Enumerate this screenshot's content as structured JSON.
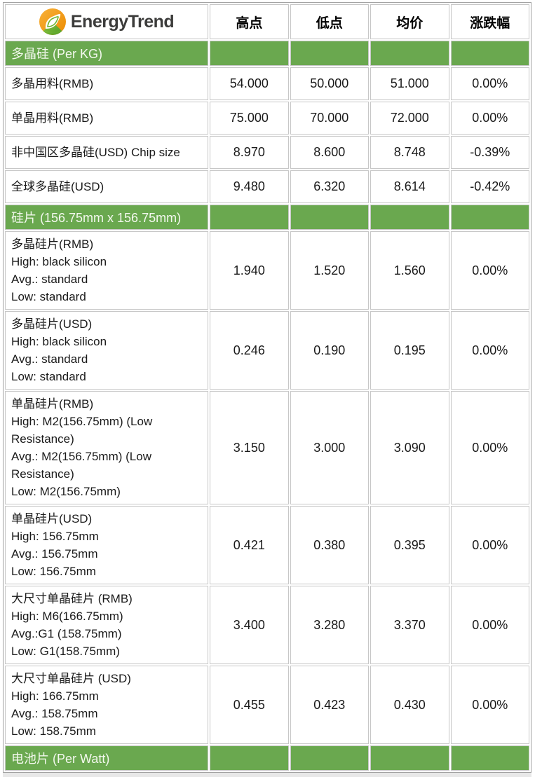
{
  "logo": {
    "text": "EnergyTrend"
  },
  "columns": [
    "高点",
    "低点",
    "均价",
    "涨跌幅"
  ],
  "colors": {
    "section_green": "#6aa84f",
    "logo_orange": "#f39a11",
    "logo_green": "#6cb32b",
    "header_text": "#000000",
    "body_text": "#1a1a1a"
  },
  "sections": [
    {
      "title": "多晶硅 (Per KG)",
      "rows": [
        {
          "label_lines": [
            "多晶用料(RMB)"
          ],
          "high": "54.000",
          "low": "50.000",
          "avg": "51.000",
          "change": "0.00%"
        },
        {
          "label_lines": [
            "单晶用料(RMB)"
          ],
          "high": "75.000",
          "low": "70.000",
          "avg": "72.000",
          "change": "0.00%"
        },
        {
          "label_lines": [
            "非中国区多晶硅(USD) Chip size"
          ],
          "high": "8.970",
          "low": "8.600",
          "avg": "8.748",
          "change": "-0.39%"
        },
        {
          "label_lines": [
            "全球多晶硅(USD)"
          ],
          "high": "9.480",
          "low": "6.320",
          "avg": "8.614",
          "change": "-0.42%"
        }
      ]
    },
    {
      "title": "硅片 (156.75mm x 156.75mm)",
      "rows": [
        {
          "label_lines": [
            "多晶硅片(RMB)",
            "High: black silicon",
            "Avg.: standard",
            "Low: standard"
          ],
          "high": "1.940",
          "low": "1.520",
          "avg": "1.560",
          "change": "0.00%"
        },
        {
          "label_lines": [
            "多晶硅片(USD)",
            "High: black silicon",
            "Avg.: standard",
            "Low: standard"
          ],
          "high": "0.246",
          "low": "0.190",
          "avg": "0.195",
          "change": "0.00%"
        },
        {
          "label_lines": [
            "单晶硅片(RMB)",
            "High: M2(156.75mm) (Low Resistance)",
            "Avg.: M2(156.75mm) (Low Resistance)",
            "Low: M2(156.75mm)"
          ],
          "high": "3.150",
          "low": "3.000",
          "avg": "3.090",
          "change": "0.00%"
        },
        {
          "label_lines": [
            "单晶硅片(USD)",
            "High: 156.75mm",
            "Avg.: 156.75mm",
            "Low: 156.75mm"
          ],
          "high": "0.421",
          "low": "0.380",
          "avg": "0.395",
          "change": "0.00%"
        },
        {
          "label_lines": [
            "大尺寸单晶硅片 (RMB)",
            "High: M6(166.75mm)",
            "Avg.:G1 (158.75mm)",
            "Low: G1(158.75mm)"
          ],
          "high": "3.400",
          "low": "3.280",
          "avg": "3.370",
          "change": "0.00%"
        },
        {
          "label_lines": [
            "大尺寸单晶硅片 (USD)",
            "High: 166.75mm",
            "Avg.: 158.75mm",
            "Low: 158.75mm"
          ],
          "high": "0.455",
          "low": "0.423",
          "avg": "0.430",
          "change": "0.00%"
        }
      ]
    },
    {
      "title": "电池片 (Per Watt)",
      "rows": []
    }
  ]
}
